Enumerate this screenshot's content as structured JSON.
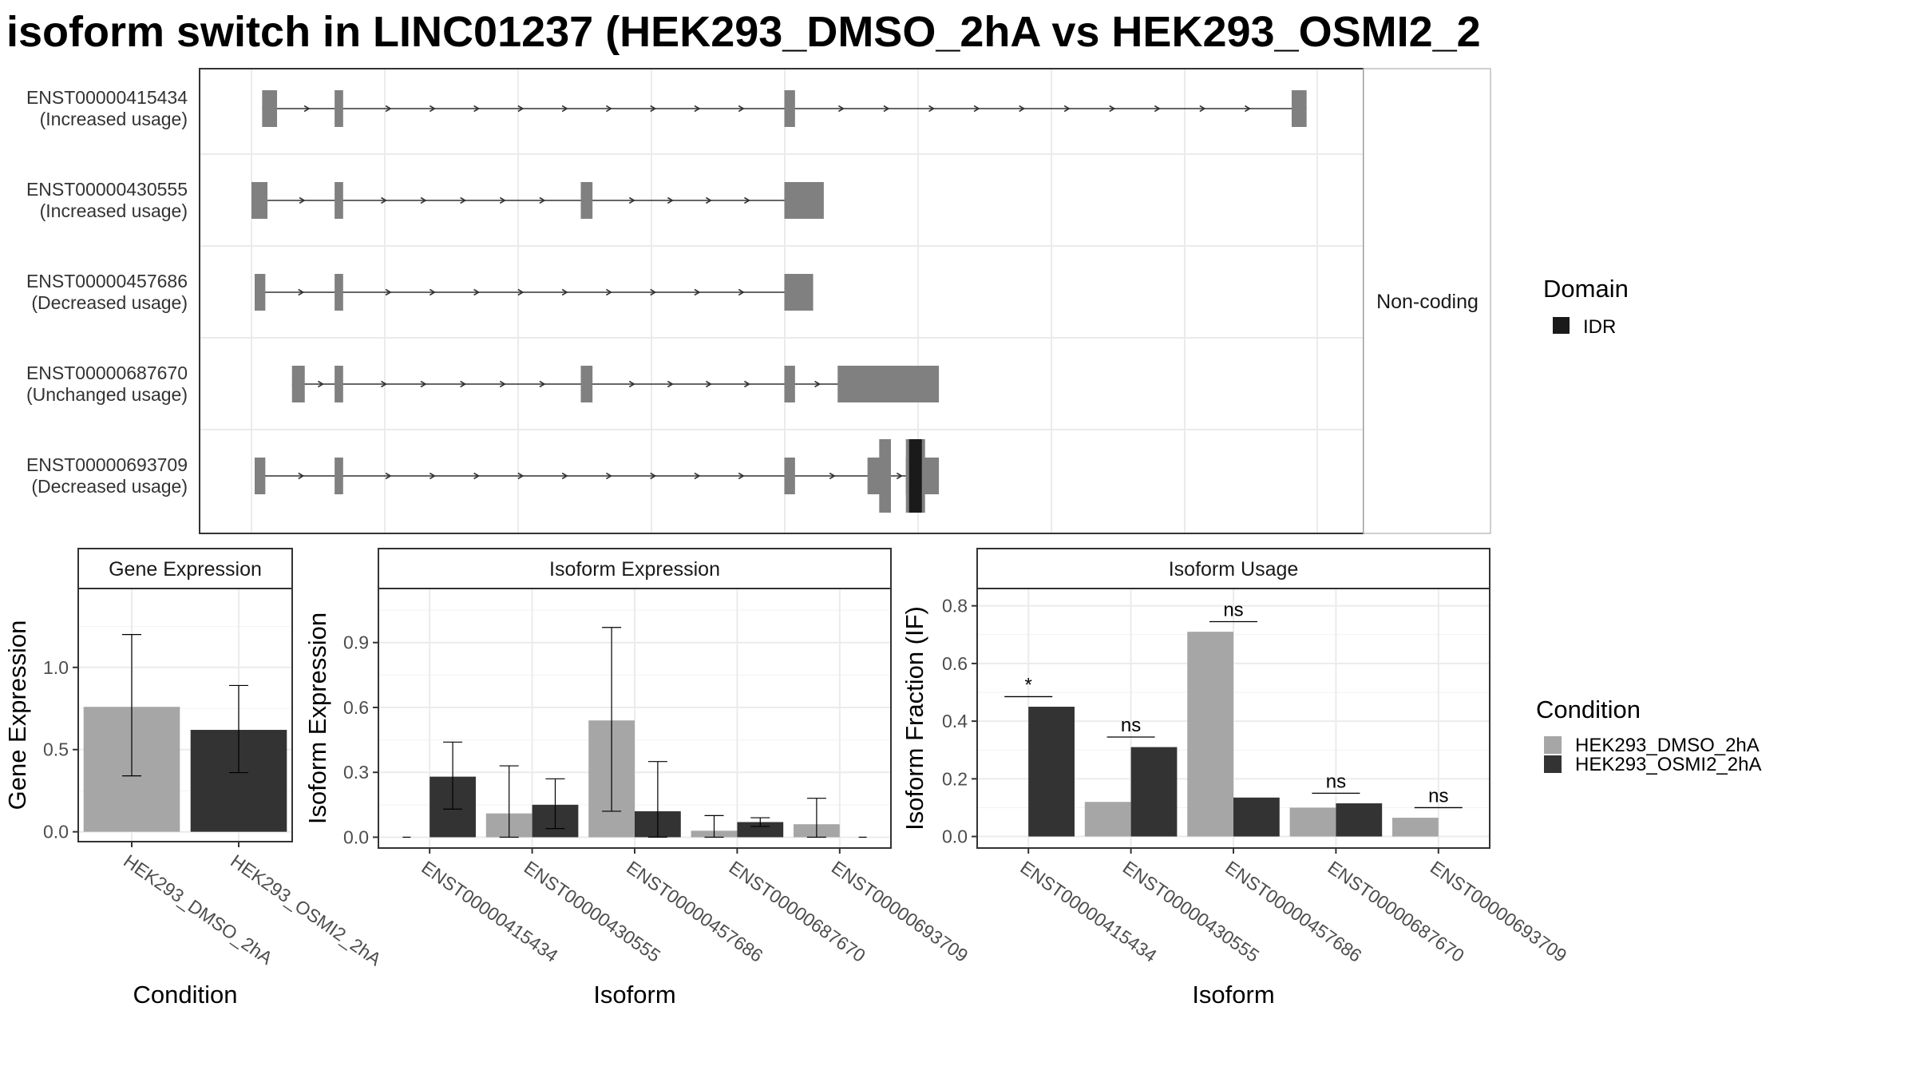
{
  "title": "isoform switch in LINC01237 (HEK293_DMSO_2hA vs HEK293_OSMI2_2",
  "colors": {
    "dmso": "#a6a6a6",
    "osmi": "#333333",
    "exon": "#808080",
    "idr": "#1a1a1a",
    "grid": "#ebebeb",
    "strip_fill": "#ffffff",
    "panel_border": "#333333"
  },
  "structure": {
    "strip_label": "Non-coding",
    "legend_title": "Domain",
    "legend_items": [
      {
        "label": "IDR",
        "color": "#1a1a1a"
      }
    ],
    "transcripts": [
      {
        "id": "ENST00000415434",
        "usage": "(Increased usage)",
        "start": 0.01,
        "end": 0.99,
        "exons": [
          [
            0.01,
            0.024
          ],
          [
            0.078,
            0.086
          ],
          [
            0.5,
            0.51
          ],
          [
            0.976,
            0.99
          ]
        ],
        "idr": []
      },
      {
        "id": "ENST00000430555",
        "usage": "(Increased usage)",
        "start": 0.0,
        "end": 0.535,
        "exons": [
          [
            0.0,
            0.015
          ],
          [
            0.078,
            0.086
          ],
          [
            0.309,
            0.32
          ],
          [
            0.5,
            0.537
          ]
        ],
        "idr": []
      },
      {
        "id": "ENST00000457686",
        "usage": "(Decreased usage)",
        "start": 0.003,
        "end": 0.525,
        "exons": [
          [
            0.003,
            0.013
          ],
          [
            0.078,
            0.086
          ],
          [
            0.5,
            0.527
          ]
        ],
        "idr": []
      },
      {
        "id": "ENST00000687670",
        "usage": "(Unchanged usage)",
        "start": 0.038,
        "end": 0.645,
        "exons": [
          [
            0.038,
            0.05
          ],
          [
            0.078,
            0.086
          ],
          [
            0.309,
            0.32
          ],
          [
            0.5,
            0.51
          ],
          [
            0.55,
            0.645
          ]
        ],
        "idr": []
      },
      {
        "id": "ENST00000693709",
        "usage": "(Decreased usage)",
        "start": 0.003,
        "end": 0.645,
        "exons": [
          [
            0.003,
            0.013
          ],
          [
            0.078,
            0.086
          ],
          [
            0.5,
            0.51
          ],
          [
            0.578,
            0.6
          ],
          [
            0.614,
            0.645
          ]
        ],
        "tall_exons": [
          [
            0.589,
            0.6
          ],
          [
            0.614,
            0.632
          ]
        ],
        "idr": [
          [
            0.617,
            0.629
          ]
        ]
      }
    ]
  },
  "chart_data": [
    {
      "type": "bar",
      "strip": "Gene Expression",
      "xlabel": "Condition",
      "ylabel": "Gene Expression",
      "ylim": [
        -0.06,
        1.48
      ],
      "yticks": [
        0.0,
        0.5,
        1.0
      ],
      "ytick_labels": [
        "0.0",
        "0.5",
        "1.0"
      ],
      "categories": [
        "HEK293_DMSO_2hA",
        "HEK293_OSMI2_2hA"
      ],
      "values": [
        0.76,
        0.62
      ],
      "err_low": [
        0.34,
        0.36
      ],
      "err_high": [
        1.2,
        0.89
      ],
      "colors": [
        "#a6a6a6",
        "#333333"
      ]
    },
    {
      "type": "bar",
      "strip": "Isoform Expression",
      "xlabel": "Isoform",
      "ylabel": "Isoform Expression",
      "ylim": [
        -0.05,
        1.15
      ],
      "yticks": [
        0.0,
        0.3,
        0.6,
        0.9
      ],
      "ytick_labels": [
        "0.0",
        "0.3",
        "0.6",
        "0.9"
      ],
      "categories": [
        "ENST00000415434",
        "ENST00000430555",
        "ENST00000457686",
        "ENST00000687670",
        "ENST00000693709"
      ],
      "series": [
        {
          "name": "HEK293_DMSO_2hA",
          "values": [
            0.0,
            0.11,
            0.54,
            0.03,
            0.06
          ],
          "err_low": [
            0.0,
            0.0,
            0.12,
            0.0,
            0.0
          ],
          "err_high": [
            0.0,
            0.33,
            0.97,
            0.1,
            0.18
          ]
        },
        {
          "name": "HEK293_OSMI2_2hA",
          "values": [
            0.28,
            0.15,
            0.12,
            0.07,
            0.0
          ],
          "err_low": [
            0.13,
            0.04,
            0.0,
            0.05,
            0.0
          ],
          "err_high": [
            0.44,
            0.27,
            0.35,
            0.09,
            0.0
          ]
        }
      ]
    },
    {
      "type": "bar",
      "strip": "Isoform Usage",
      "xlabel": "Isoform",
      "ylabel": "Isoform Fraction (IF)",
      "ylim": [
        -0.04,
        0.86
      ],
      "yticks": [
        0.0,
        0.2,
        0.4,
        0.6,
        0.8
      ],
      "ytick_labels": [
        "0.0",
        "0.2",
        "0.4",
        "0.6",
        "0.8"
      ],
      "categories": [
        "ENST00000415434",
        "ENST00000430555",
        "ENST00000457686",
        "ENST00000687670",
        "ENST00000693709"
      ],
      "series": [
        {
          "name": "HEK293_DMSO_2hA",
          "values": [
            0.0,
            0.12,
            0.71,
            0.1,
            0.065
          ]
        },
        {
          "name": "HEK293_OSMI2_2hA",
          "values": [
            0.45,
            0.31,
            0.135,
            0.115,
            0.0
          ]
        }
      ],
      "significance": [
        {
          "label": "*",
          "y": 0.485
        },
        {
          "label": "ns",
          "y": 0.345
        },
        {
          "label": "ns",
          "y": 0.745
        },
        {
          "label": "ns",
          "y": 0.15
        },
        {
          "label": "ns",
          "y": 0.1
        }
      ]
    }
  ],
  "legend": {
    "title": "Condition",
    "items": [
      {
        "label": "HEK293_DMSO_2hA",
        "color": "#a6a6a6"
      },
      {
        "label": "HEK293_OSMI2_2hA",
        "color": "#333333"
      }
    ]
  }
}
